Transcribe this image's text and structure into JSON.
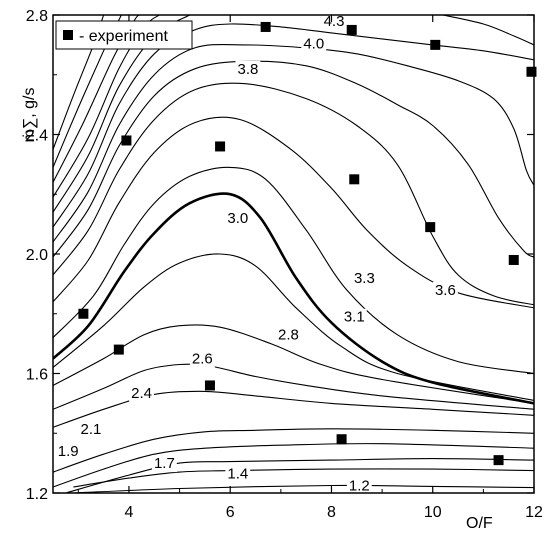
{
  "chart_data": {
    "type": "contour",
    "title": "",
    "xlabel": "O/F",
    "ylabel": "ṁ∑, g/s",
    "xlim": [
      2.5,
      12
    ],
    "ylim": [
      1.2,
      2.8
    ],
    "x_ticks": [
      {
        "value": 4,
        "label": "4"
      },
      {
        "value": 6,
        "label": "6"
      },
      {
        "value": 8,
        "label": "8"
      },
      {
        "value": 10,
        "label": "10"
      },
      {
        "value": 12,
        "label": "12"
      }
    ],
    "y_ticks": [
      {
        "value": 1.2,
        "label": "1.2"
      },
      {
        "value": 1.6,
        "label": "1.6"
      },
      {
        "value": 2.0,
        "label": "2.0"
      },
      {
        "value": 2.4,
        "label": "2.4"
      },
      {
        "value": 2.8,
        "label": "2.8"
      }
    ],
    "grid": false,
    "legend": {
      "position": "top-left",
      "entries": [
        {
          "marker": "square",
          "label": "- experiment"
        }
      ]
    },
    "experiment_points": [
      {
        "x": 3.1,
        "y": 1.8
      },
      {
        "x": 3.8,
        "y": 1.68
      },
      {
        "x": 3.95,
        "y": 2.38
      },
      {
        "x": 5.6,
        "y": 1.56
      },
      {
        "x": 5.8,
        "y": 2.36
      },
      {
        "x": 6.7,
        "y": 2.76
      },
      {
        "x": 8.2,
        "y": 1.38
      },
      {
        "x": 8.4,
        "y": 2.75
      },
      {
        "x": 8.45,
        "y": 2.25
      },
      {
        "x": 9.95,
        "y": 2.09
      },
      {
        "x": 10.05,
        "y": 2.7
      },
      {
        "x": 11.3,
        "y": 1.31
      },
      {
        "x": 11.6,
        "y": 1.98
      },
      {
        "x": 11.95,
        "y": 2.61
      }
    ],
    "contours": [
      {
        "level": "1.2",
        "bold": false,
        "points": [
          [
            2.9,
            1.2
          ],
          [
            5,
            1.215
          ],
          [
            8,
            1.225
          ],
          [
            10,
            1.222
          ],
          [
            12,
            1.218
          ]
        ]
      },
      {
        "level": "1.4",
        "bold": false,
        "points": [
          [
            2.9,
            1.22
          ],
          [
            4,
            1.25
          ],
          [
            5,
            1.27
          ],
          [
            6,
            1.275
          ],
          [
            8,
            1.28
          ],
          [
            10,
            1.28
          ],
          [
            12,
            1.275
          ]
        ]
      },
      {
        "level": "1.7",
        "bold": false,
        "points": [
          [
            2.75,
            1.2
          ],
          [
            4,
            1.26
          ],
          [
            5,
            1.3
          ],
          [
            6,
            1.305
          ],
          [
            8,
            1.31
          ],
          [
            10,
            1.315
          ],
          [
            12,
            1.31
          ]
        ]
      },
      {
        "level": "1.9",
        "bold": false,
        "points": [
          [
            2.5,
            1.22
          ],
          [
            3.5,
            1.28
          ],
          [
            4.5,
            1.33
          ],
          [
            5.5,
            1.35
          ],
          [
            7,
            1.36
          ],
          [
            9,
            1.365
          ],
          [
            12,
            1.35
          ]
        ]
      },
      {
        "level": "2.1",
        "bold": false,
        "points": [
          [
            2.5,
            1.27
          ],
          [
            3.5,
            1.33
          ],
          [
            4.5,
            1.38
          ],
          [
            5.5,
            1.405
          ],
          [
            6.5,
            1.41
          ],
          [
            8,
            1.415
          ],
          [
            10,
            1.41
          ],
          [
            12,
            1.4
          ]
        ]
      },
      {
        "level": "",
        "bold": false,
        "points": [
          [
            2.5,
            1.42
          ],
          [
            3.5,
            1.48
          ],
          [
            4.5,
            1.53
          ],
          [
            5.5,
            1.54
          ],
          [
            6.5,
            1.525
          ],
          [
            8,
            1.5
          ],
          [
            10,
            1.48
          ],
          [
            12,
            1.46
          ]
        ]
      },
      {
        "level": "2.4",
        "bold": false,
        "points": [
          [
            2.5,
            1.48
          ],
          [
            3.5,
            1.55
          ],
          [
            4.3,
            1.61
          ],
          [
            5,
            1.63
          ],
          [
            5.6,
            1.625
          ],
          [
            6.5,
            1.59
          ],
          [
            7.5,
            1.56
          ],
          [
            9,
            1.525
          ],
          [
            12,
            1.48
          ]
        ]
      },
      {
        "level": "2.6",
        "bold": false,
        "points": [
          [
            2.5,
            1.56
          ],
          [
            3.5,
            1.65
          ],
          [
            4.3,
            1.73
          ],
          [
            5,
            1.76
          ],
          [
            5.8,
            1.755
          ],
          [
            6.8,
            1.7
          ],
          [
            7.8,
            1.63
          ],
          [
            9,
            1.58
          ],
          [
            12,
            1.5
          ]
        ]
      },
      {
        "level": "2.8",
        "bold": false,
        "points": [
          [
            2.5,
            1.62
          ],
          [
            3.5,
            1.76
          ],
          [
            4.3,
            1.89
          ],
          [
            5,
            1.97
          ],
          [
            5.8,
            2.0
          ],
          [
            6.5,
            1.96
          ],
          [
            7.3,
            1.82
          ],
          [
            8.2,
            1.69
          ],
          [
            9.3,
            1.6
          ],
          [
            12,
            1.51
          ]
        ]
      },
      {
        "level": "3.0",
        "bold": true,
        "points": [
          [
            2.5,
            1.65
          ],
          [
            3.2,
            1.76
          ],
          [
            3.9,
            1.94
          ],
          [
            4.5,
            2.07
          ],
          [
            5.2,
            2.17
          ],
          [
            6,
            2.2
          ],
          [
            6.6,
            2.12
          ],
          [
            7.3,
            1.92
          ],
          [
            8,
            1.77
          ],
          [
            9,
            1.64
          ],
          [
            10,
            1.57
          ],
          [
            12,
            1.5
          ]
        ]
      },
      {
        "level": "3.1",
        "bold": false,
        "points": [
          [
            2.5,
            1.72
          ],
          [
            3.3,
            1.86
          ],
          [
            3.9,
            2.03
          ],
          [
            4.5,
            2.17
          ],
          [
            5.2,
            2.26
          ],
          [
            6,
            2.29
          ],
          [
            6.7,
            2.25
          ],
          [
            7.5,
            2.08
          ],
          [
            8.3,
            1.88
          ],
          [
            9.3,
            1.73
          ],
          [
            10.5,
            1.64
          ],
          [
            12,
            1.6
          ]
        ]
      },
      {
        "level": "3.3",
        "bold": false,
        "points": [
          [
            2.5,
            1.84
          ],
          [
            3.2,
            1.98
          ],
          [
            3.8,
            2.17
          ],
          [
            4.5,
            2.34
          ],
          [
            5.3,
            2.44
          ],
          [
            6.2,
            2.45
          ],
          [
            7.2,
            2.35
          ],
          [
            8,
            2.22
          ],
          [
            8.7,
            2.08
          ],
          [
            9.5,
            1.96
          ],
          [
            10.5,
            1.87
          ],
          [
            12,
            1.82
          ]
        ]
      },
      {
        "level": "3.6",
        "bold": false,
        "points": [
          [
            2.5,
            1.93
          ],
          [
            3.2,
            2.08
          ],
          [
            3.8,
            2.28
          ],
          [
            4.5,
            2.45
          ],
          [
            5.3,
            2.55
          ],
          [
            6.3,
            2.57
          ],
          [
            7.5,
            2.52
          ],
          [
            8.5,
            2.43
          ],
          [
            9.3,
            2.3
          ],
          [
            10,
            2.06
          ],
          [
            10.5,
            1.93
          ],
          [
            11.2,
            1.86
          ],
          [
            12,
            1.83
          ]
        ]
      },
      {
        "level": "3.8",
        "bold": false,
        "points": [
          [
            2.5,
            1.99
          ],
          [
            3.2,
            2.15
          ],
          [
            3.8,
            2.36
          ],
          [
            4.5,
            2.53
          ],
          [
            5.3,
            2.62
          ],
          [
            6.3,
            2.645
          ],
          [
            7.5,
            2.63
          ],
          [
            8.5,
            2.57
          ],
          [
            9.3,
            2.5
          ],
          [
            10,
            2.43
          ],
          [
            10.7,
            2.3
          ],
          [
            11.3,
            2.12
          ],
          [
            11.8,
            2.01
          ],
          [
            12,
            1.99
          ]
        ]
      },
      {
        "level": "4.0",
        "bold": false,
        "points": [
          [
            2.5,
            2.04
          ],
          [
            3.2,
            2.21
          ],
          [
            3.8,
            2.43
          ],
          [
            4.5,
            2.6
          ],
          [
            5.3,
            2.69
          ],
          [
            6.3,
            2.7
          ],
          [
            7.5,
            2.69
          ],
          [
            8.5,
            2.67
          ],
          [
            9.5,
            2.63
          ],
          [
            10.5,
            2.58
          ],
          [
            11.2,
            2.52
          ],
          [
            11.6,
            2.42
          ],
          [
            11.85,
            2.28
          ],
          [
            12,
            2.23
          ]
        ]
      },
      {
        "level": "4.3",
        "bold": false,
        "points": [
          [
            2.5,
            2.09
          ],
          [
            3.2,
            2.27
          ],
          [
            3.8,
            2.5
          ],
          [
            4.5,
            2.67
          ],
          [
            5.3,
            2.75
          ],
          [
            6,
            2.77
          ],
          [
            7,
            2.76
          ],
          [
            8,
            2.74
          ],
          [
            9,
            2.72
          ],
          [
            10,
            2.7
          ],
          [
            11,
            2.68
          ],
          [
            12,
            2.65
          ]
        ]
      },
      {
        "level": "",
        "bold": false,
        "points": [
          [
            2.5,
            2.14
          ],
          [
            3.2,
            2.33
          ],
          [
            3.8,
            2.56
          ],
          [
            4.5,
            2.73
          ],
          [
            5.2,
            2.8
          ]
        ]
      },
      {
        "level": "",
        "bold": false,
        "points": [
          [
            2.5,
            2.19
          ],
          [
            3.2,
            2.39
          ],
          [
            3.8,
            2.62
          ],
          [
            4.3,
            2.76
          ],
          [
            4.6,
            2.8
          ]
        ]
      },
      {
        "level": "",
        "bold": false,
        "points": [
          [
            2.5,
            2.24
          ],
          [
            3.1,
            2.44
          ],
          [
            3.7,
            2.66
          ],
          [
            4.1,
            2.78
          ],
          [
            4.2,
            2.8
          ]
        ]
      },
      {
        "level": "",
        "bold": false,
        "points": [
          [
            2.5,
            2.29
          ],
          [
            3.0,
            2.49
          ],
          [
            3.5,
            2.68
          ],
          [
            3.85,
            2.8
          ]
        ]
      },
      {
        "level": "",
        "bold": false,
        "points": [
          [
            2.5,
            2.35
          ],
          [
            2.9,
            2.53
          ],
          [
            3.3,
            2.7
          ],
          [
            3.5,
            2.8
          ]
        ]
      },
      {
        "level": "",
        "bold": false,
        "points": [
          [
            10.2,
            2.8
          ],
          [
            11,
            2.77
          ],
          [
            11.6,
            2.73
          ],
          [
            12,
            2.7
          ]
        ]
      }
    ],
    "contour_labels": [
      {
        "text": "4.3",
        "x": 8.05,
        "y": 2.78
      },
      {
        "text": "4.0",
        "x": 7.65,
        "y": 2.705
      },
      {
        "text": "3.8",
        "x": 6.35,
        "y": 2.62
      },
      {
        "text": "3.0",
        "x": 6.15,
        "y": 2.12
      },
      {
        "text": "3.3",
        "x": 8.65,
        "y": 1.92
      },
      {
        "text": "3.6",
        "x": 10.25,
        "y": 1.88
      },
      {
        "text": "3.1",
        "x": 8.45,
        "y": 1.79
      },
      {
        "text": "2.8",
        "x": 7.15,
        "y": 1.73
      },
      {
        "text": "2.6",
        "x": 5.45,
        "y": 1.65
      },
      {
        "text": "2.4",
        "x": 4.25,
        "y": 1.535
      },
      {
        "text": "2.1",
        "x": 3.25,
        "y": 1.415
      },
      {
        "text": "1.9",
        "x": 2.8,
        "y": 1.34
      },
      {
        "text": "1.7",
        "x": 4.7,
        "y": 1.3
      },
      {
        "text": "1.4",
        "x": 6.15,
        "y": 1.265
      },
      {
        "text": "1.2",
        "x": 8.55,
        "y": 1.225
      }
    ]
  }
}
